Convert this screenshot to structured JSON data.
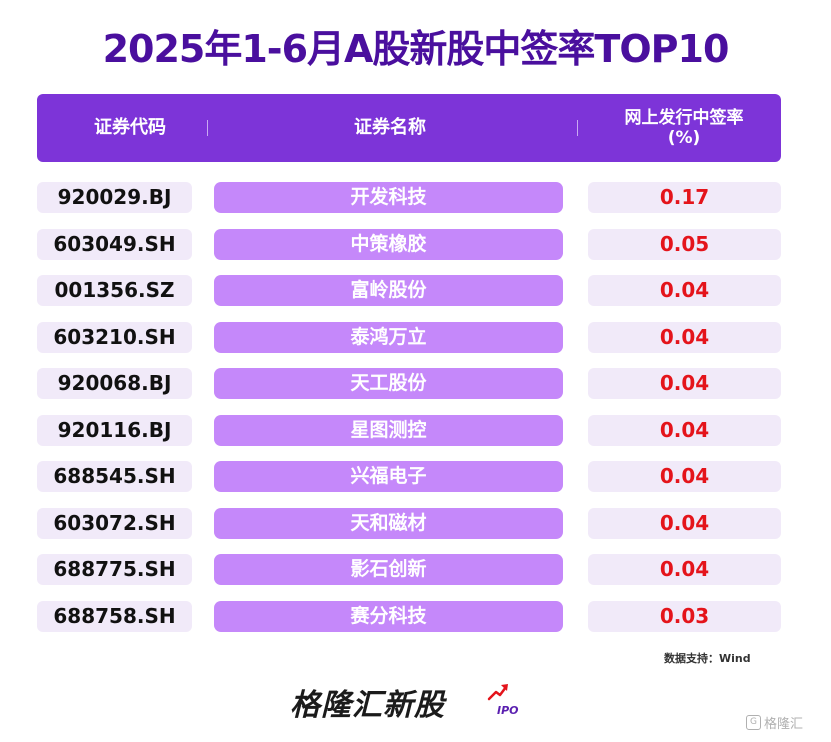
{
  "title": "2025年1-6月A股新股中签率TOP10",
  "header": {
    "col1": "证券代码",
    "col2": "证券名称",
    "col3_line1": "网上发行中签率",
    "col3_line2": "(%)"
  },
  "rows": [
    {
      "code": "920029.BJ",
      "name": "开发科技",
      "rate": "0.17"
    },
    {
      "code": "603049.SH",
      "name": "中策橡胶",
      "rate": "0.05"
    },
    {
      "code": "001356.SZ",
      "name": "富岭股份",
      "rate": "0.04"
    },
    {
      "code": "603210.SH",
      "name": "泰鸿万立",
      "rate": "0.04"
    },
    {
      "code": "920068.BJ",
      "name": "天工股份",
      "rate": "0.04"
    },
    {
      "code": "920116.BJ",
      "name": "星图测控",
      "rate": "0.04"
    },
    {
      "code": "688545.SH",
      "name": "兴福电子",
      "rate": "0.04"
    },
    {
      "code": "603072.SH",
      "name": "天和磁材",
      "rate": "0.04"
    },
    {
      "code": "688775.SH",
      "name": "影石创新",
      "rate": "0.04"
    },
    {
      "code": "688758.SH",
      "name": "赛分科技",
      "rate": "0.03"
    }
  ],
  "source": "数据支持：Wind",
  "brand": {
    "name": "格隆汇新股",
    "sub": "IPO"
  },
  "watermark": {
    "icon": "G",
    "text": "格隆汇"
  },
  "colors": {
    "title": "#4a0f9e",
    "header": "#7d34d8",
    "name_cell": "#c588fa",
    "rate": "#e4141b",
    "cell_bg": "#f1eaf9"
  }
}
